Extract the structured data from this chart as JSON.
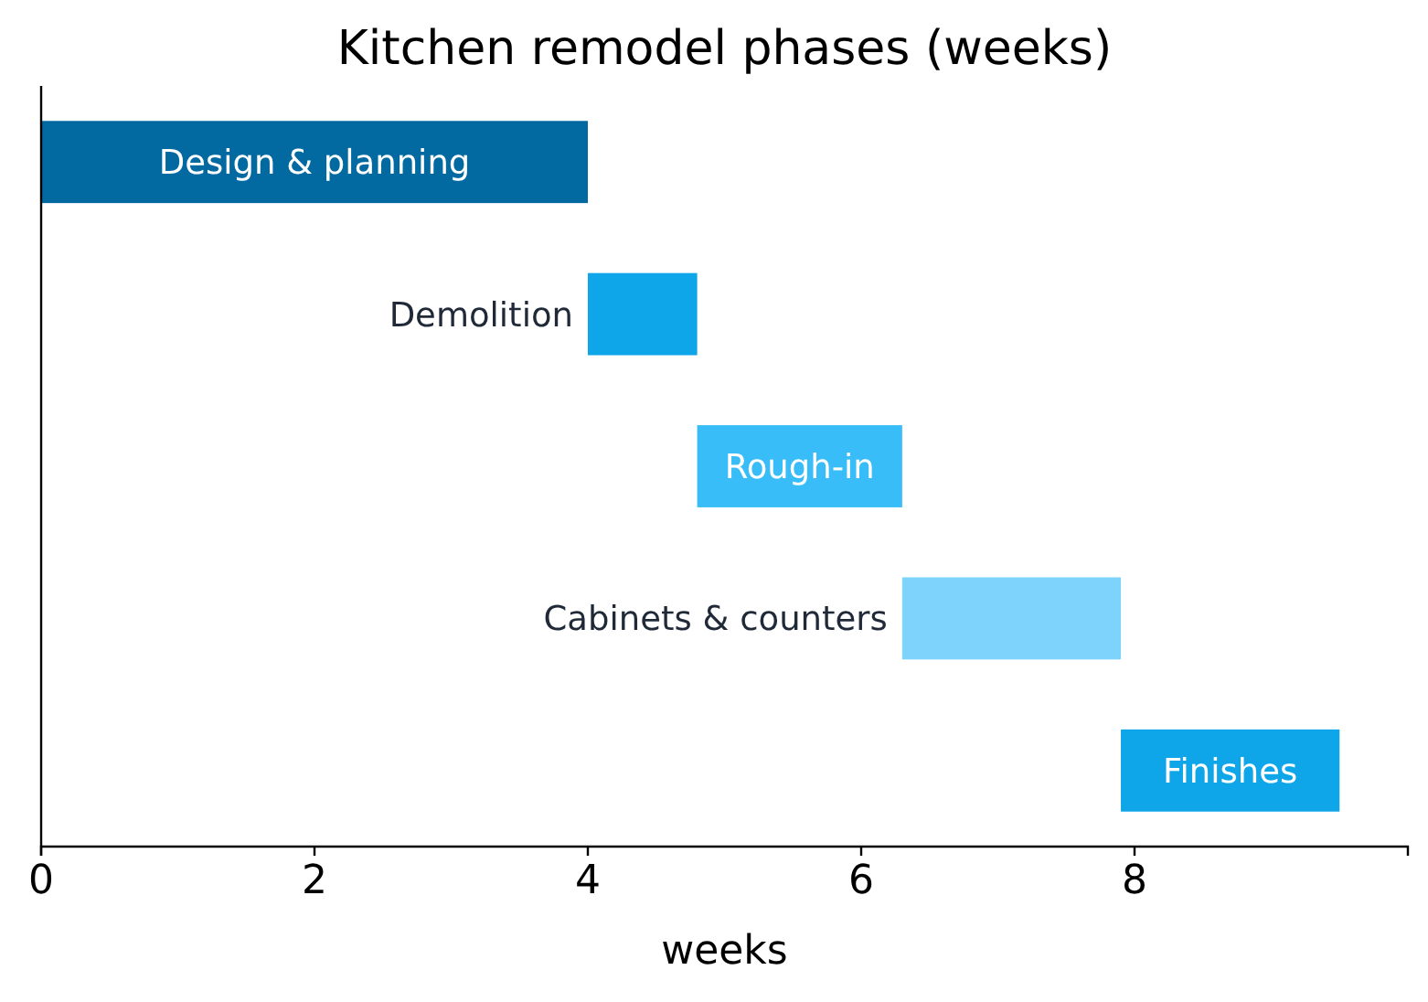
{
  "chart_data": {
    "type": "bar",
    "orientation": "horizontal",
    "title": "Kitchen remodel phases (weeks)",
    "xlabel": "weeks",
    "categories": [
      "Design & planning",
      "Demolition",
      "Rough-in",
      "Cabinets & counters",
      "Finishes"
    ],
    "base": [
      0,
      4,
      4.8,
      6.3,
      7.9
    ],
    "values": [
      4,
      0.8,
      1.5,
      1.6,
      1.6
    ],
    "colors": [
      "#0369a1",
      "#0ea5e9",
      "#38bdf8",
      "#7dd3fc",
      "#0ea5e9"
    ],
    "xlim": [
      0,
      10
    ],
    "xticks": [
      0,
      2,
      4,
      6,
      8
    ],
    "tick_labels": "x"
  }
}
